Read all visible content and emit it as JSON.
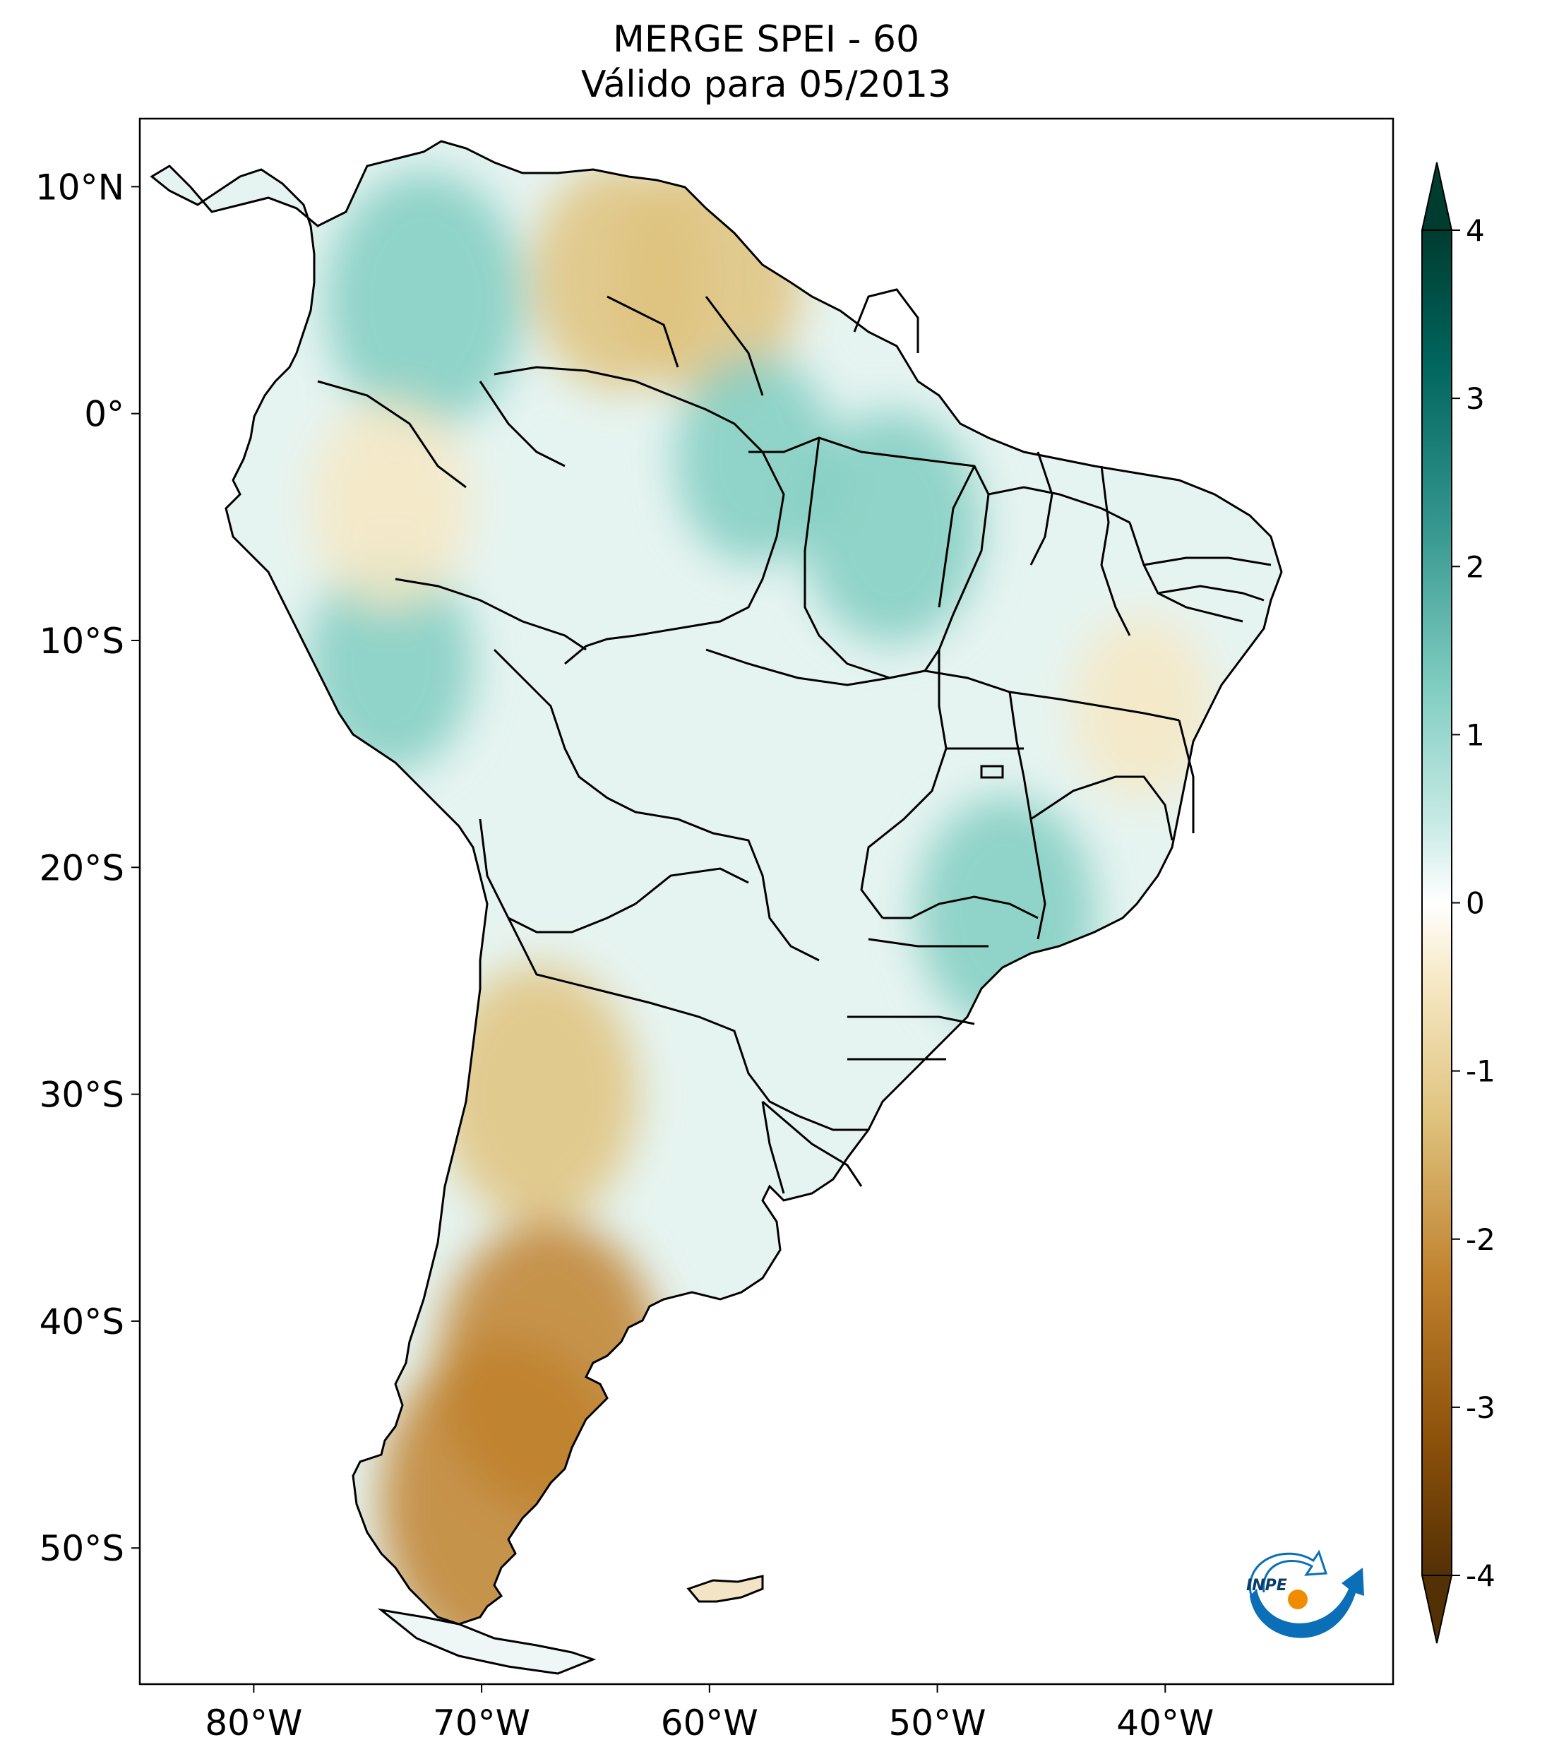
{
  "title": {
    "line1": "MERGE   SPEI - 60",
    "line2": "Válido para 05/2013"
  },
  "map": {
    "lon_range": [
      -85,
      -30
    ],
    "lat_range": [
      -56,
      13
    ],
    "x_ticks": [
      {
        "value": -80,
        "label": "80°W"
      },
      {
        "value": -70,
        "label": "70°W"
      },
      {
        "value": -60,
        "label": "60°W"
      },
      {
        "value": -50,
        "label": "50°W"
      },
      {
        "value": -40,
        "label": "40°W"
      }
    ],
    "y_ticks": [
      {
        "value": 10,
        "label": "10°N"
      },
      {
        "value": 0,
        "label": "0°"
      },
      {
        "value": -10,
        "label": "10°S"
      },
      {
        "value": -20,
        "label": "20°S"
      },
      {
        "value": -30,
        "label": "30°S"
      },
      {
        "value": -40,
        "label": "40°S"
      },
      {
        "value": -50,
        "label": "50°S"
      }
    ],
    "features": [
      {
        "name": "argentina-drought-core",
        "lon": -67.5,
        "lat": -30,
        "value": -1.8
      },
      {
        "name": "patagonia-drought",
        "lon": -67,
        "lat": -42,
        "value": -2.2
      },
      {
        "name": "south-patagonia-drought",
        "lon": -69,
        "lat": -48,
        "value": -2.6
      },
      {
        "name": "venezuela-dry",
        "lon": -64,
        "lat": 6,
        "value": -1.4
      },
      {
        "name": "guyana-dry",
        "lon": -60,
        "lat": 6,
        "value": -1.6
      },
      {
        "name": "colombia-wet",
        "lon": -72.5,
        "lat": 5,
        "value": 1.8
      },
      {
        "name": "amazon-wet",
        "lon": -58,
        "lat": -2,
        "value": 1.2
      },
      {
        "name": "para-wet",
        "lon": -52,
        "lat": -5,
        "value": 1.5
      },
      {
        "name": "southeast-brazil-wet",
        "lon": -47,
        "lat": -22,
        "value": 1.5
      },
      {
        "name": "peru-wet",
        "lon": -74,
        "lat": -11,
        "value": 1.3
      },
      {
        "name": "bahia-dry",
        "lon": -41,
        "lat": -13,
        "value": -0.9
      },
      {
        "name": "peru-north-dry",
        "lon": -74,
        "lat": -4,
        "value": -1.2
      }
    ]
  },
  "colorbar": {
    "min": -4,
    "max": 4,
    "extend": "both",
    "colormap": "BrBG",
    "ticks": [
      {
        "value": 4,
        "label": "4"
      },
      {
        "value": 3,
        "label": "3"
      },
      {
        "value": 2,
        "label": "2"
      },
      {
        "value": 1,
        "label": "1"
      },
      {
        "value": 0,
        "label": "0"
      },
      {
        "value": -1,
        "label": "-1"
      },
      {
        "value": -2,
        "label": "-2"
      },
      {
        "value": -3,
        "label": "-3"
      },
      {
        "value": -4,
        "label": "-4"
      }
    ],
    "colors": [
      "#543005",
      "#8c510a",
      "#bf812d",
      "#dfc27d",
      "#f6e8c3",
      "#ffffff",
      "#c7eae5",
      "#80cdc1",
      "#35978f",
      "#01665e",
      "#003c30"
    ]
  },
  "logo": {
    "text": "INPE",
    "accent_blue": "#0a6fb7",
    "accent_orange": "#f08c00"
  }
}
